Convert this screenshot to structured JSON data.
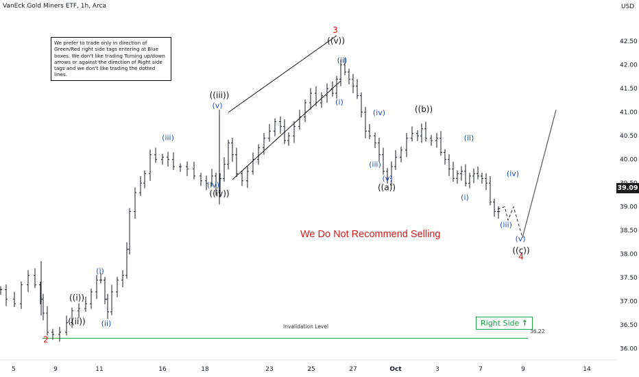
{
  "header": {
    "title": "VanEck Gold Miners ETF, 1h, Arca",
    "currency": "USD"
  },
  "note_box": "We prefer to trade only in direction of Green/Red right side tags entering at Blue boxes. We don't like trading Turning up/down arrows or against the direction of Right side tags and we don't like trading the dotted lines.",
  "recommendation": "We Do Not Recommend Selling",
  "right_side_tag": {
    "label": "Right Side",
    "arrow": "up-arrow",
    "color": "#1ea84a"
  },
  "invalidation": {
    "label": "Invalidation Level",
    "value": "36.22"
  },
  "current_price": "39.09",
  "colors": {
    "candle": "#131722",
    "wave_blue": "#1f4fb4",
    "wave_red": "#d10f0f",
    "invalidation_line": "#2ea84a"
  },
  "chart_data": {
    "type": "line",
    "y_axis": {
      "ticks": [
        "36.00",
        "36.50",
        "37.00",
        "37.50",
        "38.00",
        "38.50",
        "39.00",
        "39.50",
        "40.00",
        "40.50",
        "41.00",
        "41.50",
        "42.00",
        "42.50"
      ],
      "ylim": [
        35.85,
        42.65
      ],
      "side": "right"
    },
    "x_axis": {
      "ticks": [
        "5",
        "9",
        "11",
        "16",
        "18",
        "23",
        "25",
        "27",
        "Oct",
        "3",
        "7",
        "9",
        "14"
      ]
    },
    "price_path": {
      "x": [
        "5",
        "9",
        "11",
        "16",
        "18",
        "23",
        "25",
        "27",
        "Oct",
        "3",
        "7",
        "9"
      ],
      "y": [
        37.0,
        36.3,
        36.9,
        40.1,
        39.3,
        40.5,
        41.4,
        40.8,
        39.8,
        40.5,
        39.7,
        38.9
      ]
    },
    "wave_labels": [
      {
        "text": "2",
        "price": 36.13,
        "color": "red"
      },
      {
        "text": "((i))",
        "price": 37.02,
        "color": "black"
      },
      {
        "text": "((ii))",
        "price": 36.52,
        "color": "black"
      },
      {
        "text": "(i)",
        "price": 37.59,
        "color": "blue"
      },
      {
        "text": "(ii)",
        "price": 36.48,
        "color": "blue"
      },
      {
        "text": "(iii)",
        "price": 40.41,
        "color": "blue"
      },
      {
        "text": "((iii))",
        "price": 41.3,
        "color": "black"
      },
      {
        "text": "(v)",
        "price": 41.09,
        "color": "blue"
      },
      {
        "text": "(iv)",
        "price": 39.41,
        "color": "blue"
      },
      {
        "text": "((iv))",
        "price": 39.22,
        "color": "black"
      },
      {
        "text": "3",
        "price": 42.68,
        "color": "red"
      },
      {
        "text": "((v))",
        "price": 42.45,
        "color": "black"
      },
      {
        "text": "(ii)",
        "price": 42.05,
        "color": "blue"
      },
      {
        "text": "(i)",
        "price": 41.16,
        "color": "blue"
      },
      {
        "text": "(iv)",
        "price": 40.94,
        "color": "blue"
      },
      {
        "text": "(iii)",
        "price": 39.84,
        "color": "blue"
      },
      {
        "text": "(v)",
        "price": 39.55,
        "color": "blue"
      },
      {
        "text": "((a))",
        "price": 39.35,
        "color": "black"
      },
      {
        "text": "((b))",
        "price": 41.0,
        "color": "black"
      },
      {
        "text": "(ii)",
        "price": 40.4,
        "color": "blue"
      },
      {
        "text": "(i)",
        "price": 39.15,
        "color": "blue"
      },
      {
        "text": "(iii)",
        "price": 38.57,
        "color": "blue"
      },
      {
        "text": "(iv)",
        "price": 39.65,
        "color": "blue"
      },
      {
        "text": "(v)",
        "price": 38.27,
        "color": "blue"
      },
      {
        "text": "((c))",
        "price": 38.02,
        "color": "black"
      },
      {
        "text": "4",
        "price": 37.89,
        "color": "red"
      }
    ],
    "annotations": [
      "We Do Not Recommend Selling",
      "Invalidation Level 36.22",
      "Right Side"
    ],
    "grid": false
  }
}
